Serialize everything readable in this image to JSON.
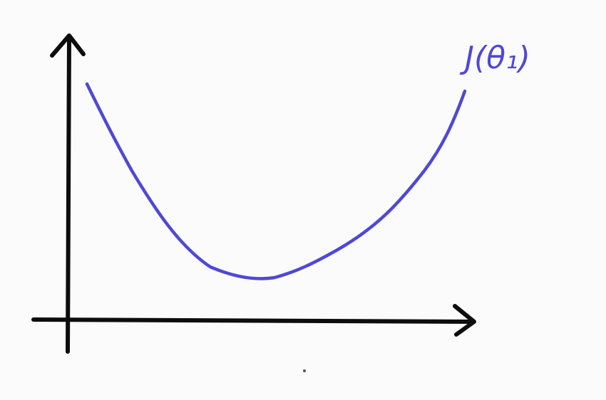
{
  "diagram": {
    "curve_label": "J(θ₁)",
    "axis_color": "#0d0d0d",
    "curve_color": "#4f48d6",
    "background": "#fbfbfb"
  }
}
